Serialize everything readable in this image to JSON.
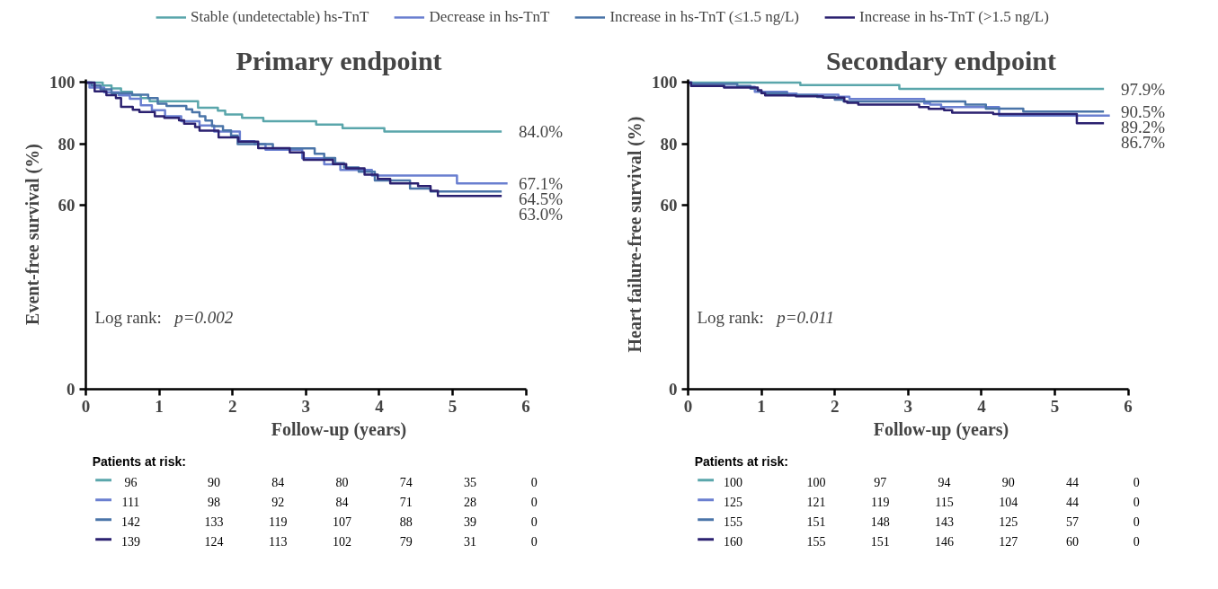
{
  "chart_data": [
    {
      "type": "step",
      "title": "Primary endpoint",
      "xlabel": "Follow-up (years)",
      "ylabel": "Event-free survival (%)",
      "xlim": [
        0,
        6
      ],
      "xticks": [
        0,
        1,
        2,
        3,
        4,
        5,
        6
      ],
      "ylim": [
        0,
        101
      ],
      "yticks": [
        0,
        60,
        80,
        100
      ],
      "legend": "top",
      "grid": false,
      "series": [
        {
          "name": "Stable (undetectable) hs-TnT",
          "color": "#5aa6ab",
          "x": [
            0,
            0.23,
            0.35,
            0.48,
            0.63,
            0.75,
            0.87,
            1.53,
            1.8,
            1.9,
            2.13,
            2.42,
            3.14,
            3.5,
            4.07,
            5.67
          ],
          "values": [
            100,
            99.0,
            98.1,
            97.0,
            95.9,
            94.9,
            93.9,
            91.8,
            90.8,
            89.6,
            88.5,
            87.4,
            86.3,
            85.1,
            84.0,
            84.0
          ]
        },
        {
          "name": "Decrease in hs-TnT",
          "color": "#6a7fd0",
          "x": [
            0,
            0.05,
            0.25,
            0.45,
            0.6,
            0.75,
            0.9,
            1.08,
            1.3,
            1.55,
            1.75,
            2.1,
            2.3,
            2.45,
            2.95,
            3.25,
            3.47,
            3.9,
            5.06,
            5.75
          ],
          "values": [
            100,
            98.4,
            96.8,
            95.8,
            94.7,
            92.6,
            91.0,
            89.0,
            87.4,
            86.0,
            84.0,
            80.9,
            79.9,
            78.1,
            75.3,
            73.3,
            71.5,
            69.7,
            67.1,
            67.1
          ]
        },
        {
          "name": "Increase in hs-TnT (≤1.5 ng/L)",
          "color": "#4a74a8",
          "x": [
            0,
            0.08,
            0.2,
            0.35,
            0.63,
            0.85,
            0.98,
            1.1,
            1.37,
            1.45,
            1.55,
            1.63,
            1.72,
            1.87,
            1.98,
            2.07,
            2.55,
            3.12,
            3.25,
            3.4,
            3.52,
            3.72,
            3.94,
            4.42,
            4.7,
            5.67
          ],
          "values": [
            100,
            99.0,
            97.8,
            96.5,
            96.0,
            94.9,
            93.1,
            92.4,
            91.3,
            90.3,
            89.0,
            87.6,
            85.8,
            84.4,
            82.7,
            79.9,
            78.5,
            76.8,
            75.4,
            73.7,
            72.3,
            70.9,
            68.1,
            65.4,
            64.5,
            64.5
          ]
        },
        {
          "name": "Increase in hs-TnT (>1.5 ng/L)",
          "color": "#2b2170",
          "x": [
            0,
            0.12,
            0.28,
            0.41,
            0.48,
            0.64,
            0.73,
            0.94,
            1.07,
            1.27,
            1.34,
            1.49,
            1.55,
            1.81,
            2.08,
            2.35,
            2.78,
            2.97,
            3.37,
            3.55,
            3.8,
            3.98,
            4.15,
            4.53,
            4.7,
            4.8,
            5.67
          ],
          "values": [
            100,
            97.1,
            95.9,
            94.9,
            92.1,
            91.1,
            90.4,
            89.0,
            88.5,
            87.7,
            86.6,
            85.5,
            84.3,
            82.1,
            80.7,
            78.6,
            77.2,
            74.8,
            73.4,
            72.0,
            70.0,
            68.6,
            67.1,
            66.2,
            64.7,
            63.0,
            63.0
          ]
        }
      ],
      "annotations": [
        "Log rank:",
        "p=0.002",
        "84.0%",
        "67.1%",
        "64.5%",
        "63.0%",
        "Patients  at risk:",
        "96",
        "90",
        "84",
        "80",
        "74",
        "35",
        "0",
        "111",
        "98",
        "92",
        "84",
        "71",
        "28",
        "0",
        "142",
        "133",
        "119",
        "107",
        "88",
        "39",
        "0",
        "139",
        "124",
        "113",
        "102",
        "79",
        "31",
        "0"
      ]
    },
    {
      "type": "step",
      "title": "Secondary endpoint",
      "xlabel": "Follow-up (years)",
      "ylabel": "Heart failure-free survival (%)",
      "xlim": [
        0,
        6
      ],
      "xticks": [
        0,
        1,
        2,
        3,
        4,
        5,
        6
      ],
      "ylim": [
        0,
        101
      ],
      "yticks": [
        0,
        60,
        80,
        100
      ],
      "grid": false,
      "series": [
        {
          "color": "#5aa6ab",
          "x": [
            0,
            1.53,
            2.88,
            5.67
          ],
          "values": [
            100,
            99.2,
            97.9,
            97.9
          ]
        },
        {
          "color": "#6a7fd0",
          "x": [
            0,
            0.05,
            0.49,
            0.91,
            1.35,
            1.48,
            2.05,
            2.2,
            3.22,
            3.3,
            3.45,
            4.24,
            5.75
          ],
          "values": [
            100,
            99.6,
            98.6,
            97.0,
            96.4,
            96.0,
            95.4,
            94.6,
            93.2,
            92.8,
            92.0,
            89.2,
            89.2
          ]
        },
        {
          "color": "#4a74a8",
          "x": [
            0,
            0.05,
            0.67,
            0.85,
            0.95,
            1.0,
            1.35,
            1.76,
            2.0,
            2.12,
            3.78,
            4.06,
            4.57,
            5.67
          ],
          "values": [
            100,
            99.5,
            98.9,
            98.0,
            97.2,
            96.5,
            95.9,
            95.3,
            94.4,
            93.8,
            92.8,
            91.5,
            90.5,
            90.5
          ]
        },
        {
          "color": "#2b2170",
          "x": [
            0,
            0.04,
            0.49,
            0.95,
            1.0,
            1.05,
            1.47,
            1.84,
            2.13,
            2.17,
            2.32,
            3.15,
            3.28,
            3.49,
            3.6,
            4.16,
            5.3,
            5.67
          ],
          "values": [
            100,
            98.9,
            98.4,
            97.5,
            96.5,
            95.8,
            95.5,
            95.1,
            93.8,
            93.4,
            92.8,
            92.0,
            91.4,
            91.0,
            90.2,
            89.7,
            86.7,
            86.7
          ]
        }
      ],
      "annotations": [
        "Log rank:",
        "p=0.011",
        "97.9%",
        "89.2%",
        "90.5%",
        "86.7%",
        "Patients  at risk:",
        "100",
        "100",
        "97",
        "94",
        "90",
        "44",
        "0",
        "125",
        "121",
        "119",
        "115",
        "104",
        "44",
        "0",
        "155",
        "151",
        "148",
        "143",
        "125",
        "57",
        "0",
        "160",
        "155",
        "151",
        "146",
        "127",
        "60",
        "0"
      ]
    }
  ]
}
